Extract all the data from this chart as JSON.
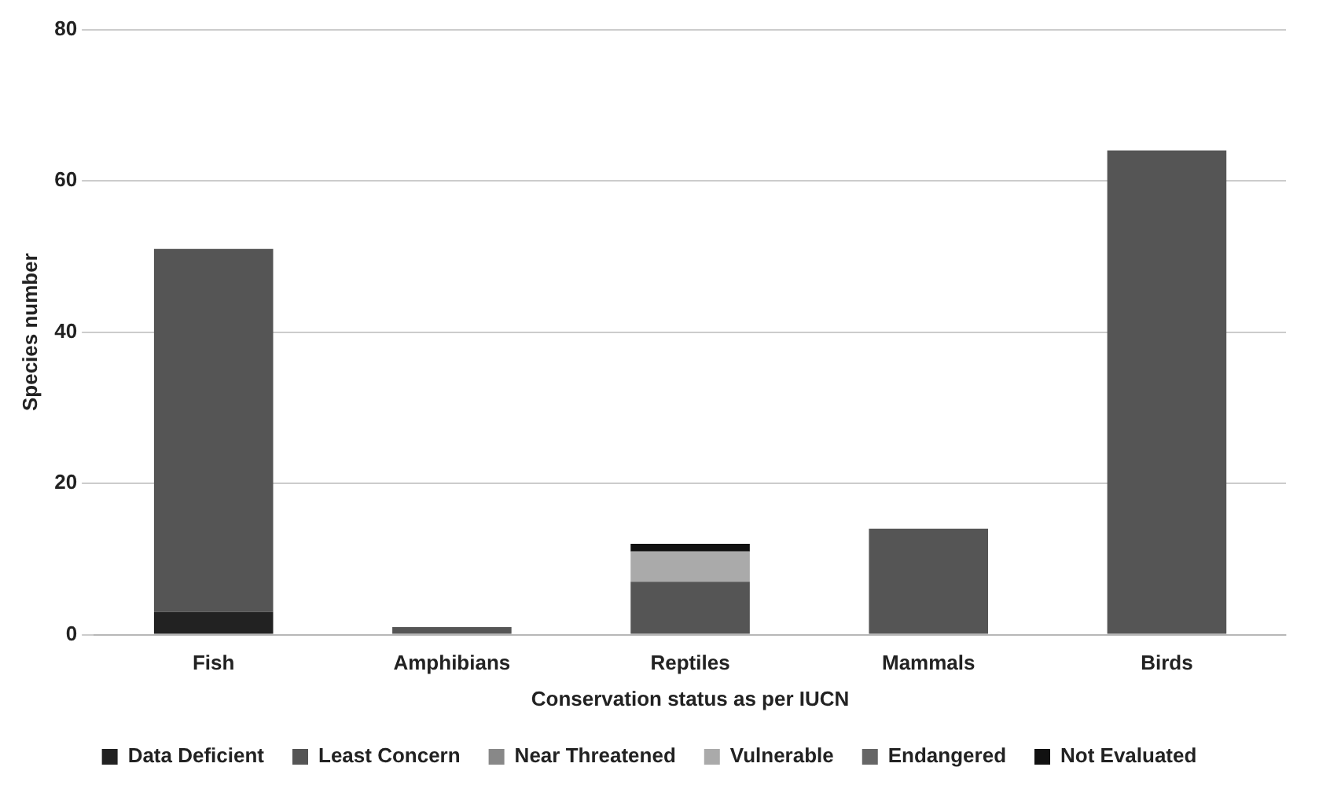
{
  "chart_data": {
    "type": "bar",
    "stacked": true,
    "xlabel": "Conservation status as per IUCN",
    "ylabel": "Species number",
    "categories": [
      "Fish",
      "Amphibians",
      "Reptiles",
      "Mammals",
      "Birds"
    ],
    "series": [
      {
        "name": "Data Deficient",
        "color": "#222222",
        "values": [
          3,
          0,
          0,
          0,
          0
        ]
      },
      {
        "name": "Least Concern",
        "color": "#555555",
        "values": [
          48,
          1,
          7,
          14,
          64
        ]
      },
      {
        "name": "Near Threatened",
        "color": "#888888",
        "values": [
          0,
          0,
          0,
          0,
          0
        ]
      },
      {
        "name": "Vulnerable",
        "color": "#aaaaaa",
        "values": [
          0,
          0,
          4,
          0,
          0
        ]
      },
      {
        "name": "Endangered",
        "color": "#666666",
        "values": [
          0,
          0,
          0,
          0,
          0
        ]
      },
      {
        "name": "Not Evaluated",
        "color": "#111111",
        "values": [
          0,
          0,
          1,
          0,
          0
        ]
      }
    ],
    "ylim": [
      0,
      80
    ],
    "yticks": [
      0,
      20,
      40,
      60,
      80
    ],
    "grid": "y",
    "legend": "bottom"
  }
}
